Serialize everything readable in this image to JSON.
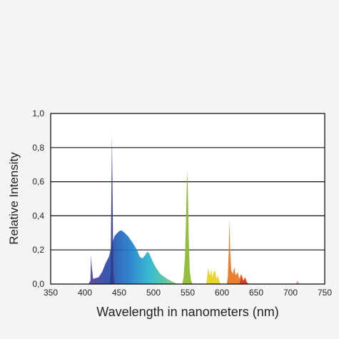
{
  "chart_data": {
    "type": "area",
    "xlabel": "Wavelength in nanometers (nm)",
    "ylabel": "Relative  Intensity",
    "xlim": [
      350,
      750
    ],
    "ylim": [
      0,
      1.0
    ],
    "x_ticks": [
      "350",
      "400",
      "450",
      "500",
      "550",
      "600",
      "650",
      "700",
      "750"
    ],
    "y_ticks": [
      "0,0",
      "0,2",
      "0,4",
      "0,6",
      "0,8",
      "1,0"
    ],
    "grid": "horizontal",
    "series": [
      {
        "color": "#2a6bc4",
        "points": [
          [
            405,
            0
          ],
          [
            408,
            0.02
          ],
          [
            409,
            0.17
          ],
          [
            410,
            0.1
          ],
          [
            412,
            0.03
          ],
          [
            420,
            0.04
          ],
          [
            425,
            0.07
          ],
          [
            430,
            0.12
          ],
          [
            435,
            0.16
          ],
          [
            440,
            0.24
          ],
          [
            443,
            0.28
          ],
          [
            445,
            0.29
          ],
          [
            450,
            0.31
          ],
          [
            453,
            0.315
          ],
          [
            458,
            0.3
          ],
          [
            463,
            0.28
          ],
          [
            470,
            0.24
          ],
          [
            476,
            0.2
          ],
          [
            480,
            0.16
          ],
          [
            484,
            0.15
          ],
          [
            488,
            0.17
          ],
          [
            491,
            0.19
          ],
          [
            494,
            0.18
          ],
          [
            498,
            0.14
          ],
          [
            503,
            0.1
          ],
          [
            510,
            0.06
          ],
          [
            520,
            0.03
          ],
          [
            530,
            0.01
          ],
          [
            535,
            0
          ]
        ]
      },
      {
        "color": "#323c8a",
        "points": [
          [
            436,
            0
          ],
          [
            437.5,
            0.08
          ],
          [
            438.5,
            0.5
          ],
          [
            439.5,
            0.87
          ],
          [
            440.5,
            0.45
          ],
          [
            441.5,
            0.08
          ],
          [
            443,
            0
          ]
        ]
      },
      {
        "color": "#8ab82e",
        "points": [
          [
            542,
            0
          ],
          [
            544,
            0.04
          ],
          [
            546,
            0.16
          ],
          [
            547.5,
            0.36
          ],
          [
            548.5,
            0.57
          ],
          [
            549.5,
            0.66
          ],
          [
            550.5,
            0.5
          ],
          [
            551.5,
            0.28
          ],
          [
            553,
            0.08
          ],
          [
            555,
            0.02
          ],
          [
            557,
            0
          ]
        ]
      },
      {
        "color": "#e6d21e",
        "points": [
          [
            577,
            0
          ],
          [
            579,
            0.06
          ],
          [
            580,
            0.1
          ],
          [
            581,
            0.07
          ],
          [
            583,
            0.05
          ],
          [
            584.5,
            0.09
          ],
          [
            586,
            0.04
          ],
          [
            588,
            0.07
          ],
          [
            590,
            0.08
          ],
          [
            592,
            0.03
          ],
          [
            594,
            0.05
          ],
          [
            596,
            0.02
          ],
          [
            598,
            0
          ]
        ]
      },
      {
        "color": "#e8741e",
        "points": [
          [
            607,
            0
          ],
          [
            608.5,
            0.04
          ],
          [
            610,
            0.2
          ],
          [
            611,
            0.38
          ],
          [
            612,
            0.2
          ],
          [
            613.5,
            0.08
          ],
          [
            616,
            0.06
          ],
          [
            618,
            0.1
          ],
          [
            620,
            0.05
          ],
          [
            623,
            0.07
          ],
          [
            625,
            0.03
          ],
          [
            628,
            0.06
          ],
          [
            631,
            0.02
          ],
          [
            634,
            0.03
          ],
          [
            638,
            0
          ]
        ]
      },
      {
        "color": "#d23a2a",
        "points": [
          [
            625,
            0
          ],
          [
            627,
            0.02
          ],
          [
            629,
            0.05
          ],
          [
            631,
            0.02
          ],
          [
            634,
            0.04
          ],
          [
            636,
            0.01
          ],
          [
            640,
            0
          ]
        ]
      },
      {
        "color": "#e89080",
        "points": [
          [
            708,
            0
          ],
          [
            709,
            0.01
          ],
          [
            710.5,
            0.02
          ],
          [
            712,
            0.005
          ],
          [
            714,
            0
          ]
        ]
      }
    ]
  }
}
